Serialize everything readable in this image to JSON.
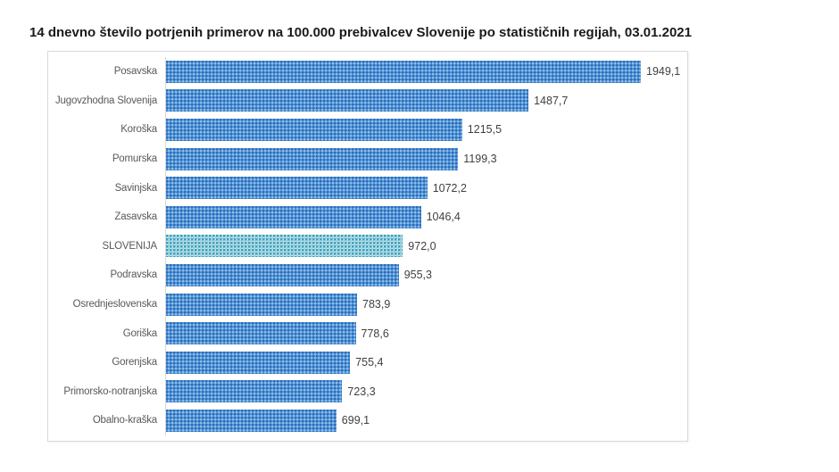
{
  "title": "14 dnevno število potrjenih primerov na 100.000 prebivalcev Slovenije po statističnih regijah, 03.01.2021",
  "chart_data": {
    "type": "bar",
    "orientation": "horizontal",
    "title": "14 dnevno število potrjenih primerov na 100.000 prebivalcev Slovenije po statističnih regijah, 03.01.2021",
    "categories": [
      "Posavska",
      "Jugovzhodna Slovenija",
      "Koroška",
      "Pomurska",
      "Savinjska",
      "Zasavska",
      "SLOVENIJA",
      "Podravska",
      "Osrednjeslovenska",
      "Goriška",
      "Gorenjska",
      "Primorsko-notranjska",
      "Obalno-kraška"
    ],
    "values": [
      1949.1,
      1487.7,
      1215.5,
      1199.3,
      1072.2,
      1046.4,
      972.0,
      955.3,
      783.9,
      778.6,
      755.4,
      723.3,
      699.1
    ],
    "value_labels": [
      "1949,1",
      "1487,7",
      "1215,5",
      "1199,3",
      "1072,2",
      "1046,4",
      "972,0",
      "955,3",
      "783,9",
      "778,6",
      "755,4",
      "723,3",
      "699,1"
    ],
    "highlight_index": 6,
    "xlabel": "",
    "ylabel": "",
    "xlim": [
      0,
      2000
    ],
    "grid": false,
    "legend": false,
    "data_labels": true
  },
  "colors": {
    "bar_base": "#4e91d4",
    "bar_dot_dark": "#2d6fbd",
    "bar_dot_light": "#8cbde8",
    "highlight_base": "#cfe9ee",
    "highlight_dot_dark": "#3f9fbc",
    "highlight_dot_light": "#a3d7e1",
    "chart_border": "#d9d9d9",
    "axis_line": "#d9d9d9",
    "label_text": "#595959",
    "value_text": "#404040",
    "title_text": "#1a1a1a",
    "background": "#ffffff"
  }
}
